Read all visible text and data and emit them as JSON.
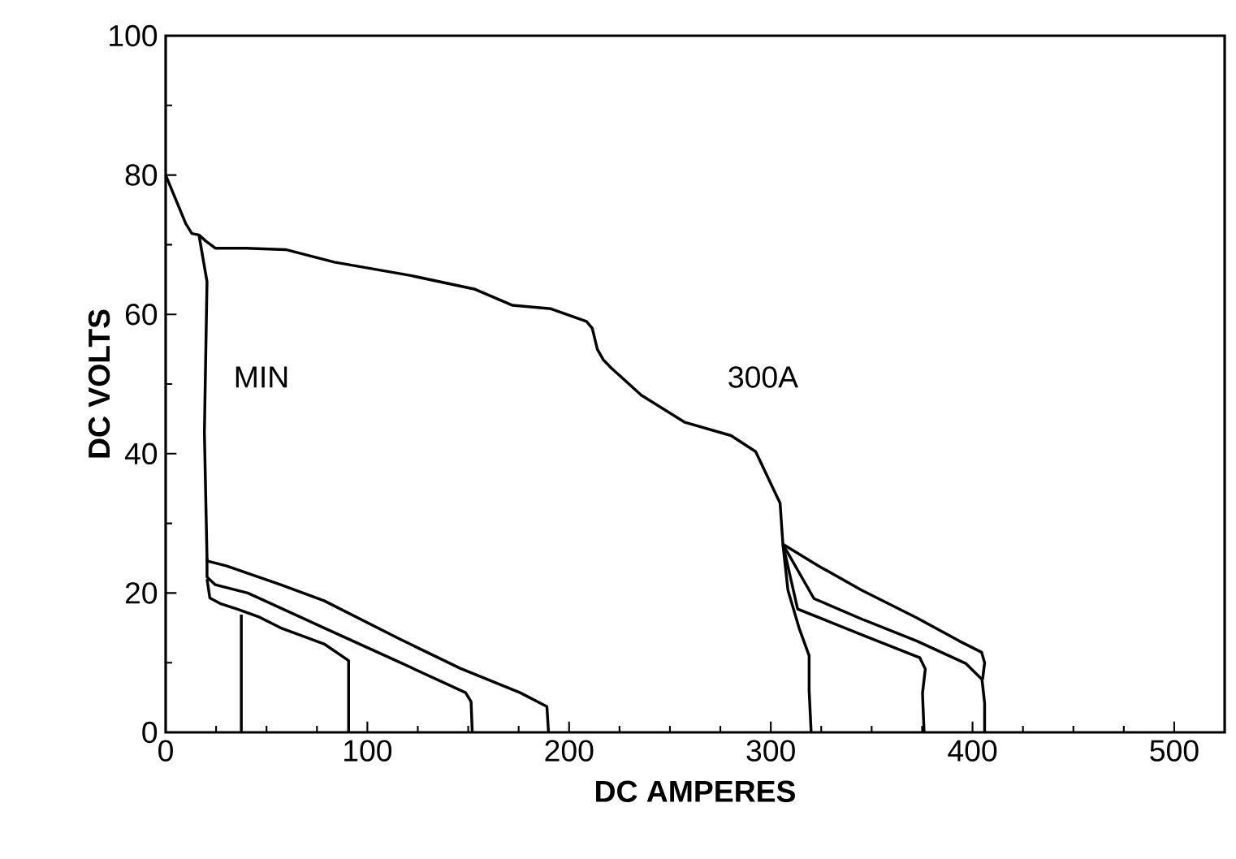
{
  "chart_data": {
    "type": "line",
    "xlabel": "DC AMPERES",
    "ylabel": "DC VOLTS",
    "xlim": [
      0,
      525
    ],
    "ylim": [
      0,
      100
    ],
    "xticks": [
      0,
      100,
      200,
      300,
      400,
      500
    ],
    "yticks": [
      0,
      20,
      40,
      60,
      80,
      100
    ],
    "annotations": [
      "MIN",
      "300A"
    ],
    "series": [
      {
        "color": "#000000",
        "x": [
          0,
          5,
          10,
          13,
          16.5,
          20,
          24.6,
          40,
          59.5,
          83.6,
          121,
          153.4,
          172,
          191,
          208.6,
          211.5,
          214,
          216.9,
          220.9,
          235.8,
          257.4,
          280.3,
          292.5,
          304.6,
          306,
          308.5,
          314,
          319,
          319,
          320
        ],
        "values": [
          80,
          76.5,
          73,
          71.6,
          71.4,
          70.5,
          69.5,
          69.5,
          69.3,
          67.5,
          65.6,
          63.6,
          61.3,
          60.8,
          59,
          58,
          55,
          53.5,
          52.3,
          48.4,
          44.5,
          42.6,
          40.3,
          32.9,
          27,
          20.4,
          15,
          11,
          6,
          0
        ]
      },
      {
        "color": "#000000",
        "x": [
          306,
          313.3,
          346.9,
          373.9,
          376.6,
          375.2,
          376
        ],
        "values": [
          27,
          17.7,
          13.8,
          10.7,
          9.1,
          5.6,
          0
        ]
      },
      {
        "color": "#000000",
        "x": [
          306,
          321.4,
          345.6,
          372.5,
          396.6,
          404.7,
          406,
          406
        ],
        "values": [
          27,
          19.2,
          16.2,
          13.1,
          9.9,
          7.6,
          4.2,
          0
        ]
      },
      {
        "color": "#000000",
        "x": [
          306,
          323.6,
          345.1,
          372,
          393.5,
          404.5,
          406,
          405
        ],
        "values": [
          27,
          23.9,
          20.4,
          16.5,
          13.1,
          11.5,
          10,
          7.6
        ]
      },
      {
        "color": "#000000",
        "x": [
          16.5,
          20.5,
          19.2,
          20.5,
          20.5,
          30,
          57,
          78.5,
          116,
          146,
          175.7,
          189,
          189.8
        ],
        "values": [
          71.4,
          64.7,
          43,
          25.1,
          24.6,
          23.9,
          21.2,
          18.9,
          13.4,
          9.2,
          5.7,
          3.7,
          0
        ]
      },
      {
        "color": "#000000",
        "x": [
          20.5,
          20.5,
          24.5,
          40.7,
          78.5,
          116.4,
          148.7,
          151.4,
          152
        ],
        "values": [
          25,
          22.3,
          21.2,
          20,
          15,
          10,
          5.7,
          4.4,
          0
        ]
      },
      {
        "color": "#000000",
        "x": [
          20.5,
          21.9,
          27,
          35.4,
          46,
          57,
          78.5,
          90.7,
          90.7
        ],
        "values": [
          22,
          19.3,
          18.5,
          17.7,
          16.6,
          15,
          12.7,
          10.3,
          0
        ]
      },
      {
        "color": "#000000",
        "x": [
          37.5,
          37.5
        ],
        "values": [
          16.9,
          0
        ]
      }
    ]
  }
}
